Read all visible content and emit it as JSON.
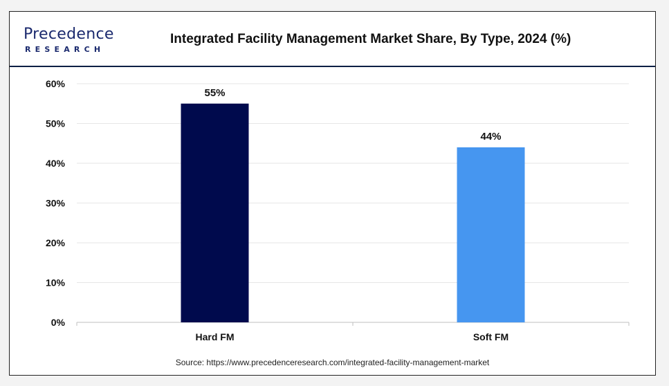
{
  "header": {
    "logo_name": "Precedence",
    "logo_subtext": "RESEARCH",
    "title": "Integrated Facility Management Market Share, By Type, 2024 (%)"
  },
  "source_text": "Source: https://www.precedenceresearch.com/integrated-facility-management-market",
  "colors": {
    "logo": "#1b2a6e",
    "grid": "#e6e6e6",
    "axis": "#bfbfbf"
  },
  "chart_data": {
    "type": "bar",
    "title": "Integrated Facility Management Market Share, By Type, 2024 (%)",
    "categories": [
      "Hard FM",
      "Soft FM"
    ],
    "values": [
      55,
      44
    ],
    "data_labels": [
      "55%",
      "44%"
    ],
    "bar_colors": [
      "#000a4d",
      "#4696f0"
    ],
    "ylim": [
      0,
      60
    ],
    "yticks": [
      0,
      10,
      20,
      30,
      40,
      50,
      60
    ],
    "ytick_labels": [
      "0%",
      "10%",
      "20%",
      "30%",
      "40%",
      "50%",
      "60%"
    ],
    "xlabel": "",
    "ylabel": "",
    "grid": true,
    "legend": "none"
  }
}
